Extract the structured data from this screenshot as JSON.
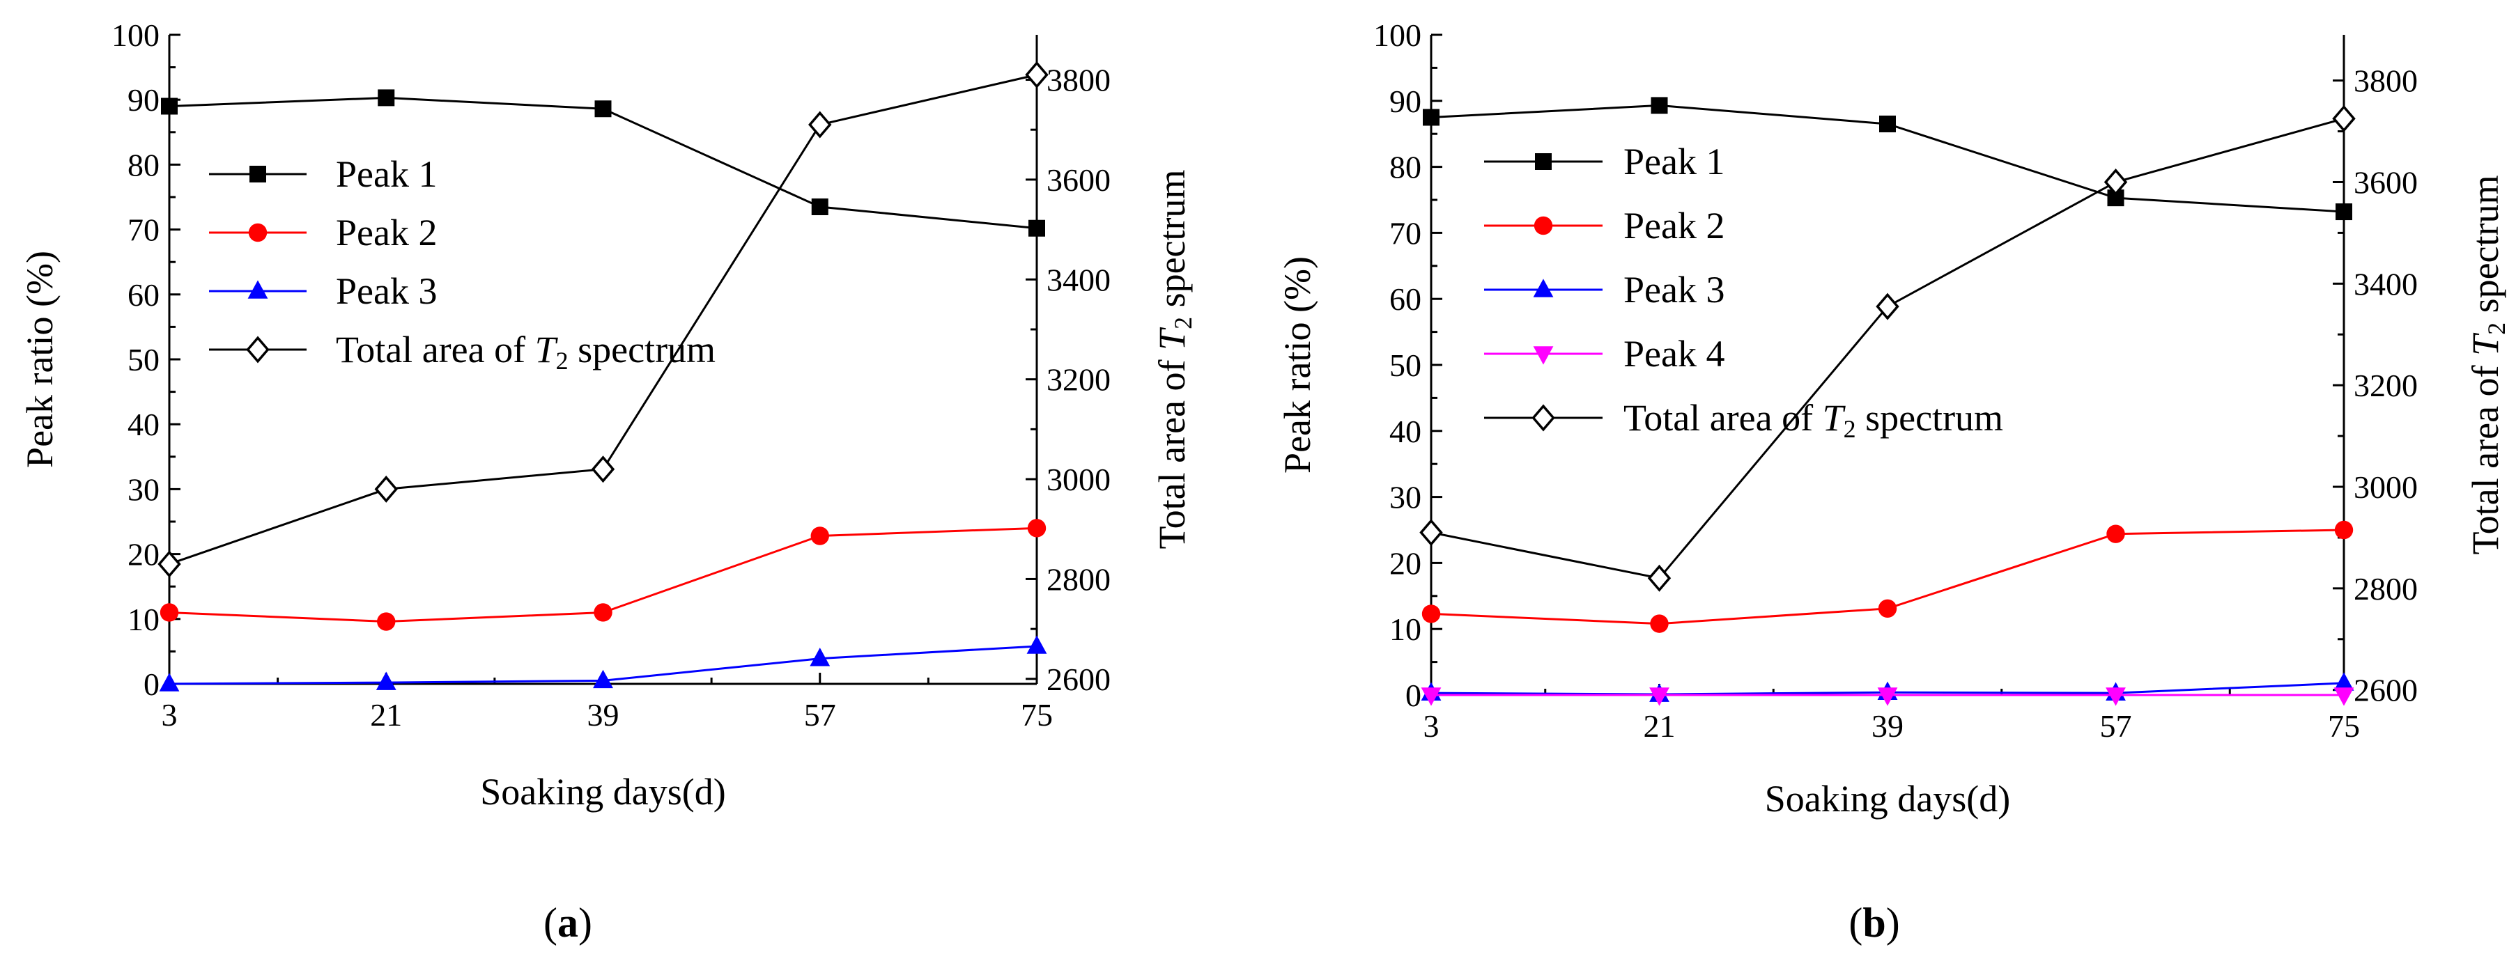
{
  "figure": {
    "panels": [
      "a",
      "b"
    ]
  },
  "chart_data": [
    {
      "type": "line",
      "panel_label": "a",
      "xlabel": "Soaking days(d)",
      "ylabel": "Peak ratio (%)",
      "y2label_prefix": "Total area of ",
      "y2label_italic": "T",
      "y2label_sub": "2",
      "y2label_suffix": " spectrum",
      "x": [
        3,
        21,
        39,
        57,
        75
      ],
      "x_tick_labels": [
        "3",
        "21",
        "39",
        "57",
        "75"
      ],
      "xlim": [
        3,
        75
      ],
      "ylim": [
        0,
        100
      ],
      "y_ticks": [
        0,
        10,
        20,
        30,
        40,
        50,
        60,
        70,
        80,
        90,
        100
      ],
      "y_tick_labels": [
        "0",
        "10",
        "20",
        "30",
        "40",
        "50",
        "60",
        "70",
        "80",
        "90",
        "100"
      ],
      "y2lim": [
        2590,
        3890
      ],
      "y2_ticks": [
        2600,
        2800,
        3000,
        3200,
        3400,
        3600,
        3800
      ],
      "y2_tick_labels": [
        "2600",
        "2800",
        "3000",
        "3200",
        "3400",
        "3600",
        "3800"
      ],
      "legend_position": "upper-left",
      "series": [
        {
          "name": "Peak 1",
          "axis": "left",
          "color": "#000000",
          "marker": "square",
          "values": [
            89.0,
            90.3,
            88.6,
            73.5,
            70.2
          ]
        },
        {
          "name": "Peak 2",
          "axis": "left",
          "color": "#ff0000",
          "marker": "circle",
          "values": [
            11.0,
            9.6,
            11.0,
            22.8,
            24.0
          ]
        },
        {
          "name": "Peak 3",
          "axis": "left",
          "color": "#0000ff",
          "marker": "triangle-up",
          "values": [
            0.0,
            0.2,
            0.5,
            3.9,
            5.8
          ]
        },
        {
          "name": "Total area of T2 spectrum",
          "name_prefix": "Total area of ",
          "name_italic": "T",
          "name_sub": "2",
          "name_suffix": " spectrum",
          "axis": "right",
          "color": "#000000",
          "marker": "diamond-open",
          "values": [
            2830,
            2980,
            3020,
            3710,
            3810
          ]
        }
      ]
    },
    {
      "type": "line",
      "panel_label": "b",
      "xlabel": "Soaking days(d)",
      "ylabel": "Peak ratio (%)",
      "y2label_prefix": "Total area of ",
      "y2label_italic": "T",
      "y2label_sub": "2",
      "y2label_suffix": " spectrum",
      "x": [
        3,
        21,
        39,
        57,
        75
      ],
      "x_tick_labels": [
        "3",
        "21",
        "39",
        "57",
        "75"
      ],
      "xlim": [
        3,
        75
      ],
      "ylim": [
        0,
        100
      ],
      "y_ticks": [
        0,
        10,
        20,
        30,
        40,
        50,
        60,
        70,
        80,
        90,
        100
      ],
      "y_tick_labels": [
        "0",
        "10",
        "20",
        "30",
        "40",
        "50",
        "60",
        "70",
        "80",
        "90",
        "100"
      ],
      "y2lim": [
        2590,
        3890
      ],
      "y2_ticks": [
        2600,
        2800,
        3000,
        3200,
        3400,
        3600,
        3800
      ],
      "y2_tick_labels": [
        "2600",
        "2800",
        "3000",
        "3200",
        "3400",
        "3600",
        "3800"
      ],
      "legend_position": "upper-left",
      "series": [
        {
          "name": "Peak 1",
          "axis": "left",
          "color": "#000000",
          "marker": "square",
          "values": [
            87.5,
            89.3,
            86.5,
            75.3,
            73.2
          ]
        },
        {
          "name": "Peak 2",
          "axis": "left",
          "color": "#ff0000",
          "marker": "circle",
          "values": [
            12.3,
            10.8,
            13.1,
            24.4,
            25.0
          ]
        },
        {
          "name": "Peak 3",
          "axis": "left",
          "color": "#0000ff",
          "marker": "triangle-up",
          "values": [
            0.3,
            0.1,
            0.4,
            0.3,
            1.8
          ]
        },
        {
          "name": "Peak 4",
          "axis": "left",
          "color": "#ff00ff",
          "marker": "triangle-down",
          "values": [
            0.0,
            0.0,
            0.0,
            0.0,
            0.0
          ]
        },
        {
          "name": "Total area of T2 spectrum",
          "name_prefix": "Total area of ",
          "name_italic": "T",
          "name_sub": "2",
          "name_suffix": " spectrum",
          "axis": "right",
          "color": "#000000",
          "marker": "diamond-open",
          "values": [
            2910,
            2820,
            3355,
            3600,
            3725
          ]
        }
      ]
    }
  ]
}
